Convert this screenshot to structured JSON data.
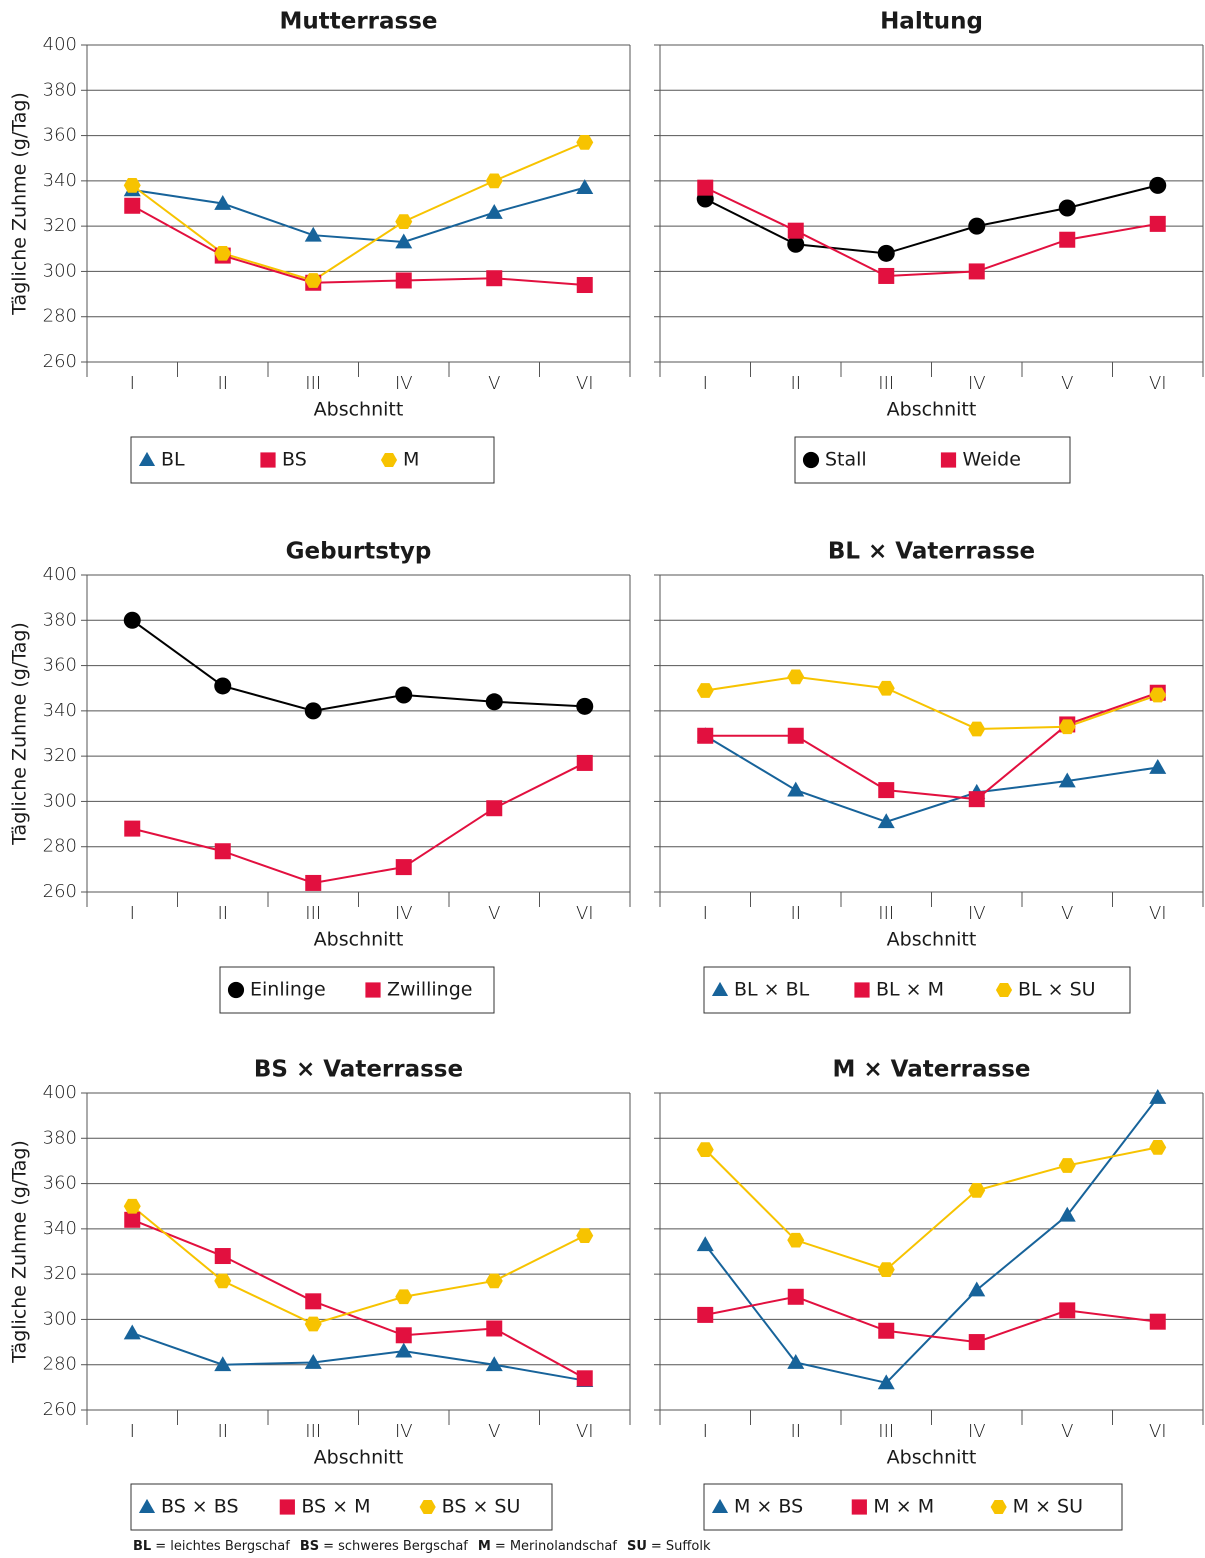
{
  "chart_data": [
    {
      "type": "line",
      "title": "Mutterrasse",
      "xlabel": "Abschnitt",
      "ylabel": "Tägliche Zuhme (g/Tag)",
      "categories": [
        "I",
        "II",
        "III",
        "IV",
        "V",
        "VI"
      ],
      "ylim": [
        260,
        400
      ],
      "yticks": [
        260,
        280,
        300,
        320,
        340,
        360,
        380,
        400
      ],
      "ytick_labels": true,
      "grid": true,
      "series": [
        {
          "name": "BL",
          "color": "#17639a",
          "marker": "triangle",
          "values": [
            336,
            330,
            316,
            313,
            326,
            337
          ]
        },
        {
          "name": "BS",
          "color": "#e2103f",
          "marker": "square",
          "values": [
            329,
            307,
            295,
            296,
            297,
            294
          ]
        },
        {
          "name": "M",
          "color": "#f7c300",
          "marker": "hexagon",
          "values": [
            338,
            308,
            296,
            322,
            340,
            357
          ]
        }
      ]
    },
    {
      "type": "line",
      "title": "Haltung",
      "xlabel": "Abschnitt",
      "categories": [
        "I",
        "II",
        "III",
        "IV",
        "V",
        "VI"
      ],
      "ylim": [
        260,
        400
      ],
      "yticks": [
        260,
        280,
        300,
        320,
        340,
        360,
        380,
        400
      ],
      "ytick_labels": false,
      "grid": true,
      "series": [
        {
          "name": "Stall",
          "color": "#000000",
          "marker": "circle",
          "values": [
            332,
            312,
            308,
            320,
            328,
            338
          ]
        },
        {
          "name": "Weide",
          "color": "#e2103f",
          "marker": "square",
          "values": [
            337,
            318,
            298,
            300,
            314,
            321
          ]
        }
      ]
    },
    {
      "type": "line",
      "title": "Geburtstyp",
      "xlabel": "Abschnitt",
      "ylabel": "Tägliche Zuhme (g/Tag)",
      "categories": [
        "I",
        "II",
        "III",
        "IV",
        "V",
        "VI"
      ],
      "ylim": [
        260,
        400
      ],
      "yticks": [
        260,
        280,
        300,
        320,
        340,
        360,
        380,
        400
      ],
      "ytick_labels": true,
      "grid": true,
      "series": [
        {
          "name": "Einlinge",
          "color": "#000000",
          "marker": "circle",
          "values": [
            380,
            351,
            340,
            347,
            344,
            342
          ]
        },
        {
          "name": "Zwillinge",
          "color": "#e2103f",
          "marker": "square",
          "values": [
            288,
            278,
            264,
            271,
            297,
            317
          ]
        }
      ]
    },
    {
      "type": "line",
      "title": "BL × Vaterrasse",
      "xlabel": "Abschnitt",
      "categories": [
        "I",
        "II",
        "III",
        "IV",
        "V",
        "VI"
      ],
      "ylim": [
        260,
        400
      ],
      "yticks": [
        260,
        280,
        300,
        320,
        340,
        360,
        380,
        400
      ],
      "ytick_labels": false,
      "grid": true,
      "series": [
        {
          "name": "BL × BL",
          "color": "#17639a",
          "marker": "triangle",
          "values": [
            329,
            305,
            291,
            304,
            309,
            315
          ]
        },
        {
          "name": "BL × M",
          "color": "#e2103f",
          "marker": "square",
          "values": [
            329,
            329,
            305,
            301,
            334,
            348
          ]
        },
        {
          "name": "BL × SU",
          "color": "#f7c300",
          "marker": "hexagon",
          "values": [
            349,
            355,
            350,
            332,
            333,
            347
          ]
        }
      ]
    },
    {
      "type": "line",
      "title": "BS × Vaterrasse",
      "xlabel": "Abschnitt",
      "ylabel": "Tägliche Zuhme (g/Tag)",
      "categories": [
        "I",
        "II",
        "III",
        "IV",
        "V",
        "VI"
      ],
      "ylim": [
        260,
        400
      ],
      "yticks": [
        260,
        280,
        300,
        320,
        340,
        360,
        380,
        400
      ],
      "ytick_labels": true,
      "grid": true,
      "series": [
        {
          "name": "BS × BS",
          "color": "#17639a",
          "marker": "triangle",
          "values": [
            294,
            280,
            281,
            286,
            280,
            273
          ]
        },
        {
          "name": "BS × M",
          "color": "#e2103f",
          "marker": "square",
          "values": [
            344,
            328,
            308,
            293,
            296,
            274
          ]
        },
        {
          "name": "BS × SU",
          "color": "#f7c300",
          "marker": "hexagon",
          "values": [
            350,
            317,
            298,
            310,
            317,
            337
          ]
        }
      ]
    },
    {
      "type": "line",
      "title": "M × Vaterrasse",
      "xlabel": "Abschnitt",
      "categories": [
        "I",
        "II",
        "III",
        "IV",
        "V",
        "VI"
      ],
      "ylim": [
        260,
        400
      ],
      "yticks": [
        260,
        280,
        300,
        320,
        340,
        360,
        380,
        400
      ],
      "ytick_labels": false,
      "grid": true,
      "series": [
        {
          "name": "M × BS",
          "color": "#17639a",
          "marker": "triangle",
          "values": [
            333,
            281,
            272,
            313,
            346,
            398
          ]
        },
        {
          "name": "M × M",
          "color": "#e2103f",
          "marker": "square",
          "values": [
            302,
            310,
            295,
            290,
            304,
            299
          ]
        },
        {
          "name": "M × SU",
          "color": "#f7c300",
          "marker": "hexagon",
          "values": [
            375,
            335,
            322,
            357,
            368,
            376
          ]
        }
      ]
    }
  ],
  "footnote": [
    {
      "abbr": "BL",
      "text": "= leichtes Bergschaf"
    },
    {
      "abbr": "BS",
      "text": "= schweres Bergschaf"
    },
    {
      "abbr": "M",
      "text": "= Merinolandschaf"
    },
    {
      "abbr": "SU",
      "text": "= Suffolk"
    }
  ]
}
